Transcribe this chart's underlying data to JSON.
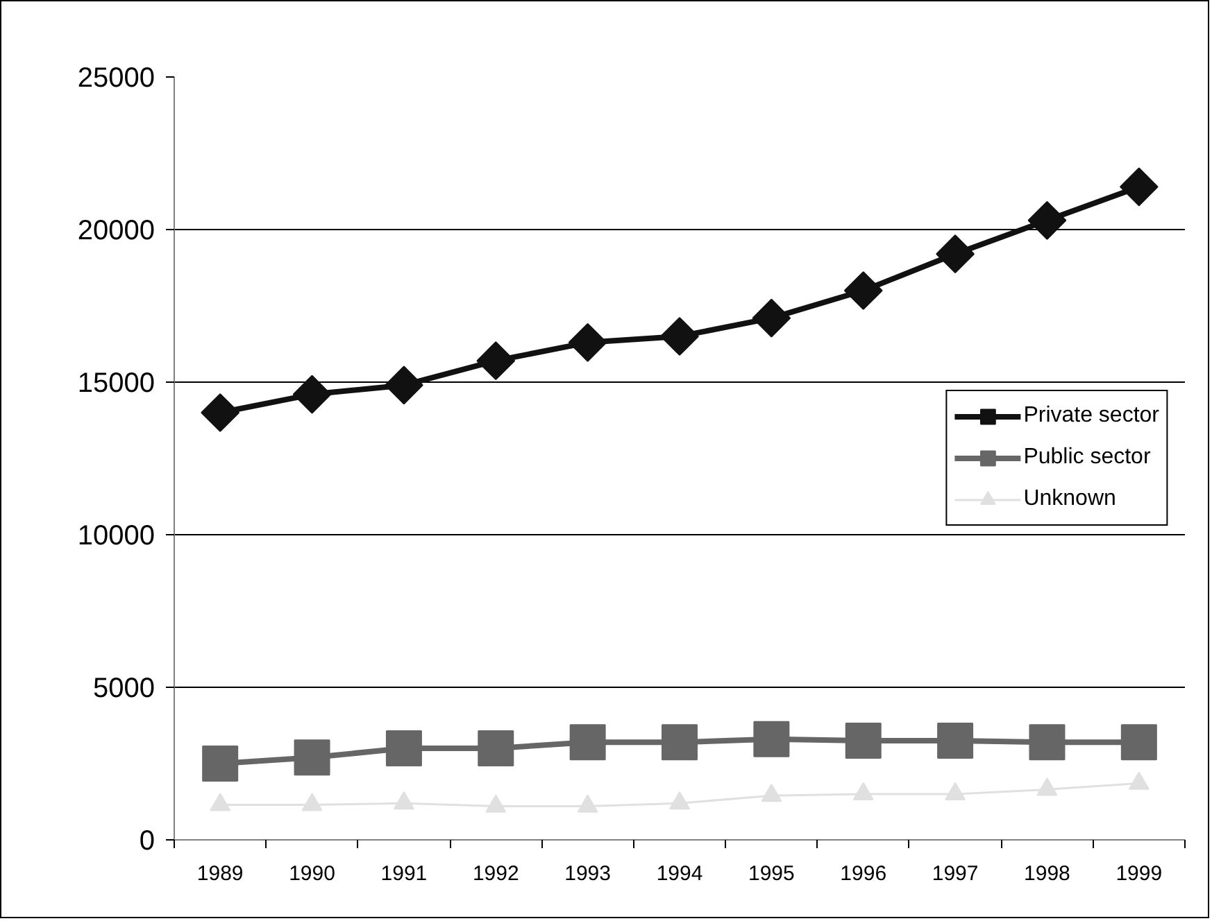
{
  "chart_data": {
    "type": "line",
    "categories": [
      "1989",
      "1990",
      "1991",
      "1992",
      "1993",
      "1994",
      "1995",
      "1996",
      "1997",
      "1998",
      "1999"
    ],
    "ylim": [
      0,
      25000
    ],
    "yticks": [
      0,
      5000,
      10000,
      15000,
      20000,
      25000
    ],
    "grid": "y",
    "legend": "right",
    "series": [
      {
        "name": "Private sector",
        "color": "#111111",
        "marker": "diamond",
        "values": [
          14000,
          14600,
          14900,
          15700,
          16300,
          16500,
          17100,
          18000,
          19200,
          20300,
          21400
        ]
      },
      {
        "name": "Public sector",
        "color": "#666666",
        "marker": "square",
        "values": [
          2500,
          2700,
          3000,
          3000,
          3200,
          3200,
          3300,
          3250,
          3250,
          3200,
          3200
        ]
      },
      {
        "name": "Unknown",
        "color": "#e0e0e0",
        "marker": "triangle",
        "values": [
          1150,
          1150,
          1200,
          1100,
          1100,
          1200,
          1450,
          1500,
          1500,
          1650,
          1850
        ]
      }
    ]
  }
}
